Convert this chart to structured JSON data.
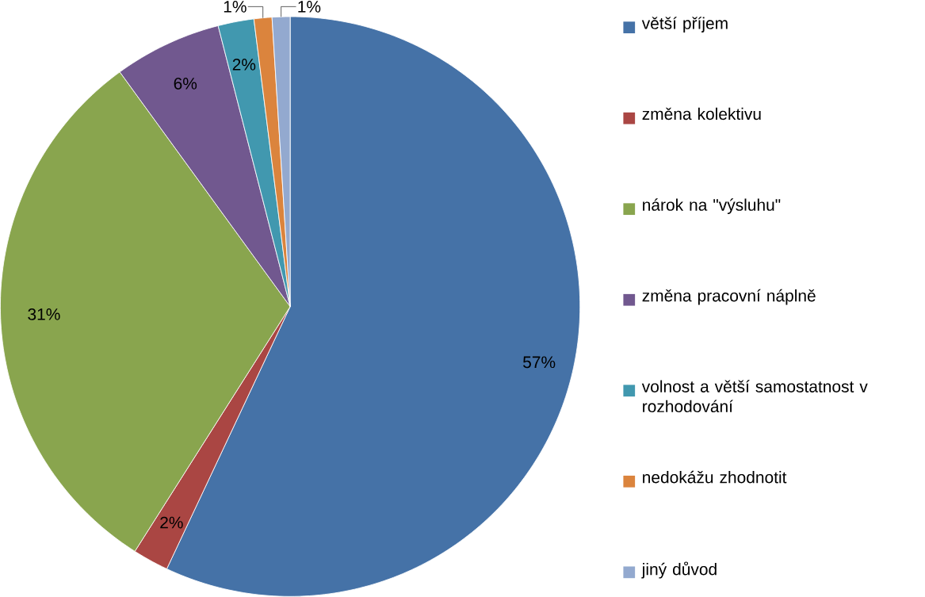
{
  "chart_data": {
    "type": "pie",
    "categories": [
      "větší příjem",
      "změna kolektivu",
      "nárok na \"výsluhu\"",
      "změna pracovní náplně",
      "volnost a větší samostatnost v rozhodování",
      "nedokážu zhodnotit",
      "jiný důvod"
    ],
    "values": [
      57,
      2,
      31,
      6,
      2,
      1,
      1
    ],
    "colors": [
      "#4572a7",
      "#aa4643",
      "#89a54e",
      "#71588f",
      "#4198af",
      "#db843d",
      "#93a9cf"
    ],
    "value_labels": [
      "57%",
      "2%",
      "31%",
      "6%",
      "2%",
      "1%",
      "1%"
    ],
    "legend": "right"
  }
}
